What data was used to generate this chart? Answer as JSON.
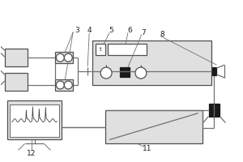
{
  "lc": "#707070",
  "lw": 0.9,
  "fc_box": "#e0e0e0",
  "fc_white": "white",
  "fc_dark": "#1a1a1a",
  "ec": "#505050",
  "fig_w": 3.0,
  "fig_h": 2.0,
  "dpi": 100
}
